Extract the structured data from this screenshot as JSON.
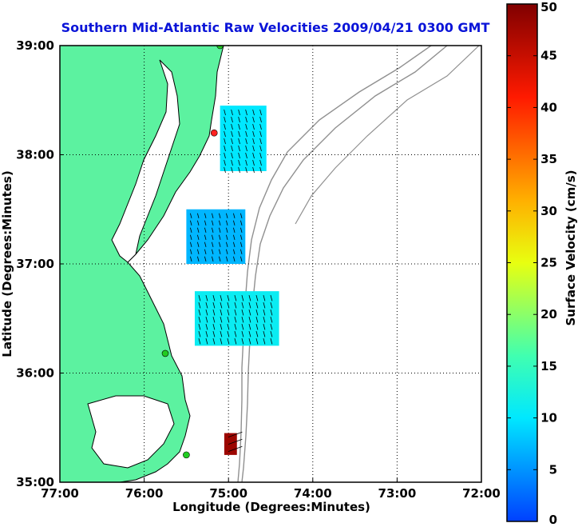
{
  "chart_data": {
    "type": "heatmap",
    "title": "Southern Mid-Atlantic Raw Velocities 2009/04/21 0300 GMT",
    "xlabel": "Longitude (Degrees:Minutes)",
    "ylabel": "Latitude (Degrees:Minutes)",
    "xlim": [
      -77,
      -72
    ],
    "ylim": [
      35,
      39
    ],
    "x_ticks": [
      "77:00",
      "76:00",
      "75:00",
      "74:00",
      "73:00",
      "72:00"
    ],
    "y_ticks": [
      "35:00",
      "36:00",
      "37:00",
      "38:00",
      "39:00"
    ],
    "grid": true,
    "colorbar": {
      "label": "Surface Velocity (cm/s)",
      "min": 0,
      "max": 50,
      "ticks": [
        "0",
        "5",
        "10",
        "15",
        "20",
        "25",
        "30",
        "35",
        "40",
        "45",
        "50"
      ]
    },
    "velocity_regions": [
      {
        "name": "region-38N",
        "lon": [
          -75.1,
          -74.55
        ],
        "lat": [
          37.85,
          38.45
        ],
        "speed": 10
      },
      {
        "name": "region-37-3N",
        "lon": [
          -75.5,
          -74.8
        ],
        "lat": [
          37.0,
          37.5
        ],
        "speed": 7
      },
      {
        "name": "region-36-6N",
        "lon": [
          -75.4,
          -74.4
        ],
        "lat": [
          36.25,
          36.75
        ],
        "speed": 11
      },
      {
        "name": "region-35-3N",
        "lon": [
          -75.05,
          -74.9
        ],
        "lat": [
          35.25,
          35.45
        ],
        "speed": 48
      }
    ],
    "stations": [
      {
        "lon": -75.1,
        "lat": 39.0,
        "color": "#22cc22"
      },
      {
        "lon": -75.17,
        "lat": 38.2,
        "color": "#ff2222"
      },
      {
        "lon": -75.75,
        "lat": 36.18,
        "color": "#22cc22"
      },
      {
        "lon": -75.5,
        "lat": 35.25,
        "color": "#22cc22"
      }
    ]
  }
}
